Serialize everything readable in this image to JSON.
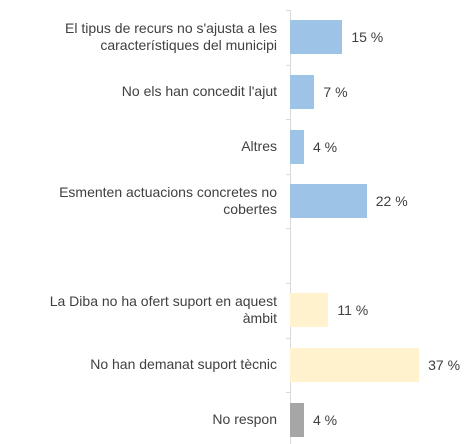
{
  "chart_data": {
    "type": "hbar",
    "categories": [
      "El tipus de recurs no s'ajusta a les característiques del municipi",
      "No els han concedit l'ajut",
      "Altres",
      "Esmenten actuacions concretes no cobertes",
      null,
      "La Diba no ha ofert suport en aquest àmbit",
      "No han demanat suport tècnic",
      "No respon"
    ],
    "values": [
      15,
      7,
      4,
      22,
      null,
      11,
      37,
      4
    ],
    "value_labels": [
      "15 %",
      "7 %",
      "4 %",
      "22 %",
      null,
      "11 %",
      "37 %",
      "4 %"
    ],
    "colors": [
      "#9dc3e6",
      "#9dc3e6",
      "#9dc3e6",
      "#9dc3e6",
      null,
      "#fff2cc",
      "#fff2cc",
      "#a6a6a6"
    ]
  }
}
